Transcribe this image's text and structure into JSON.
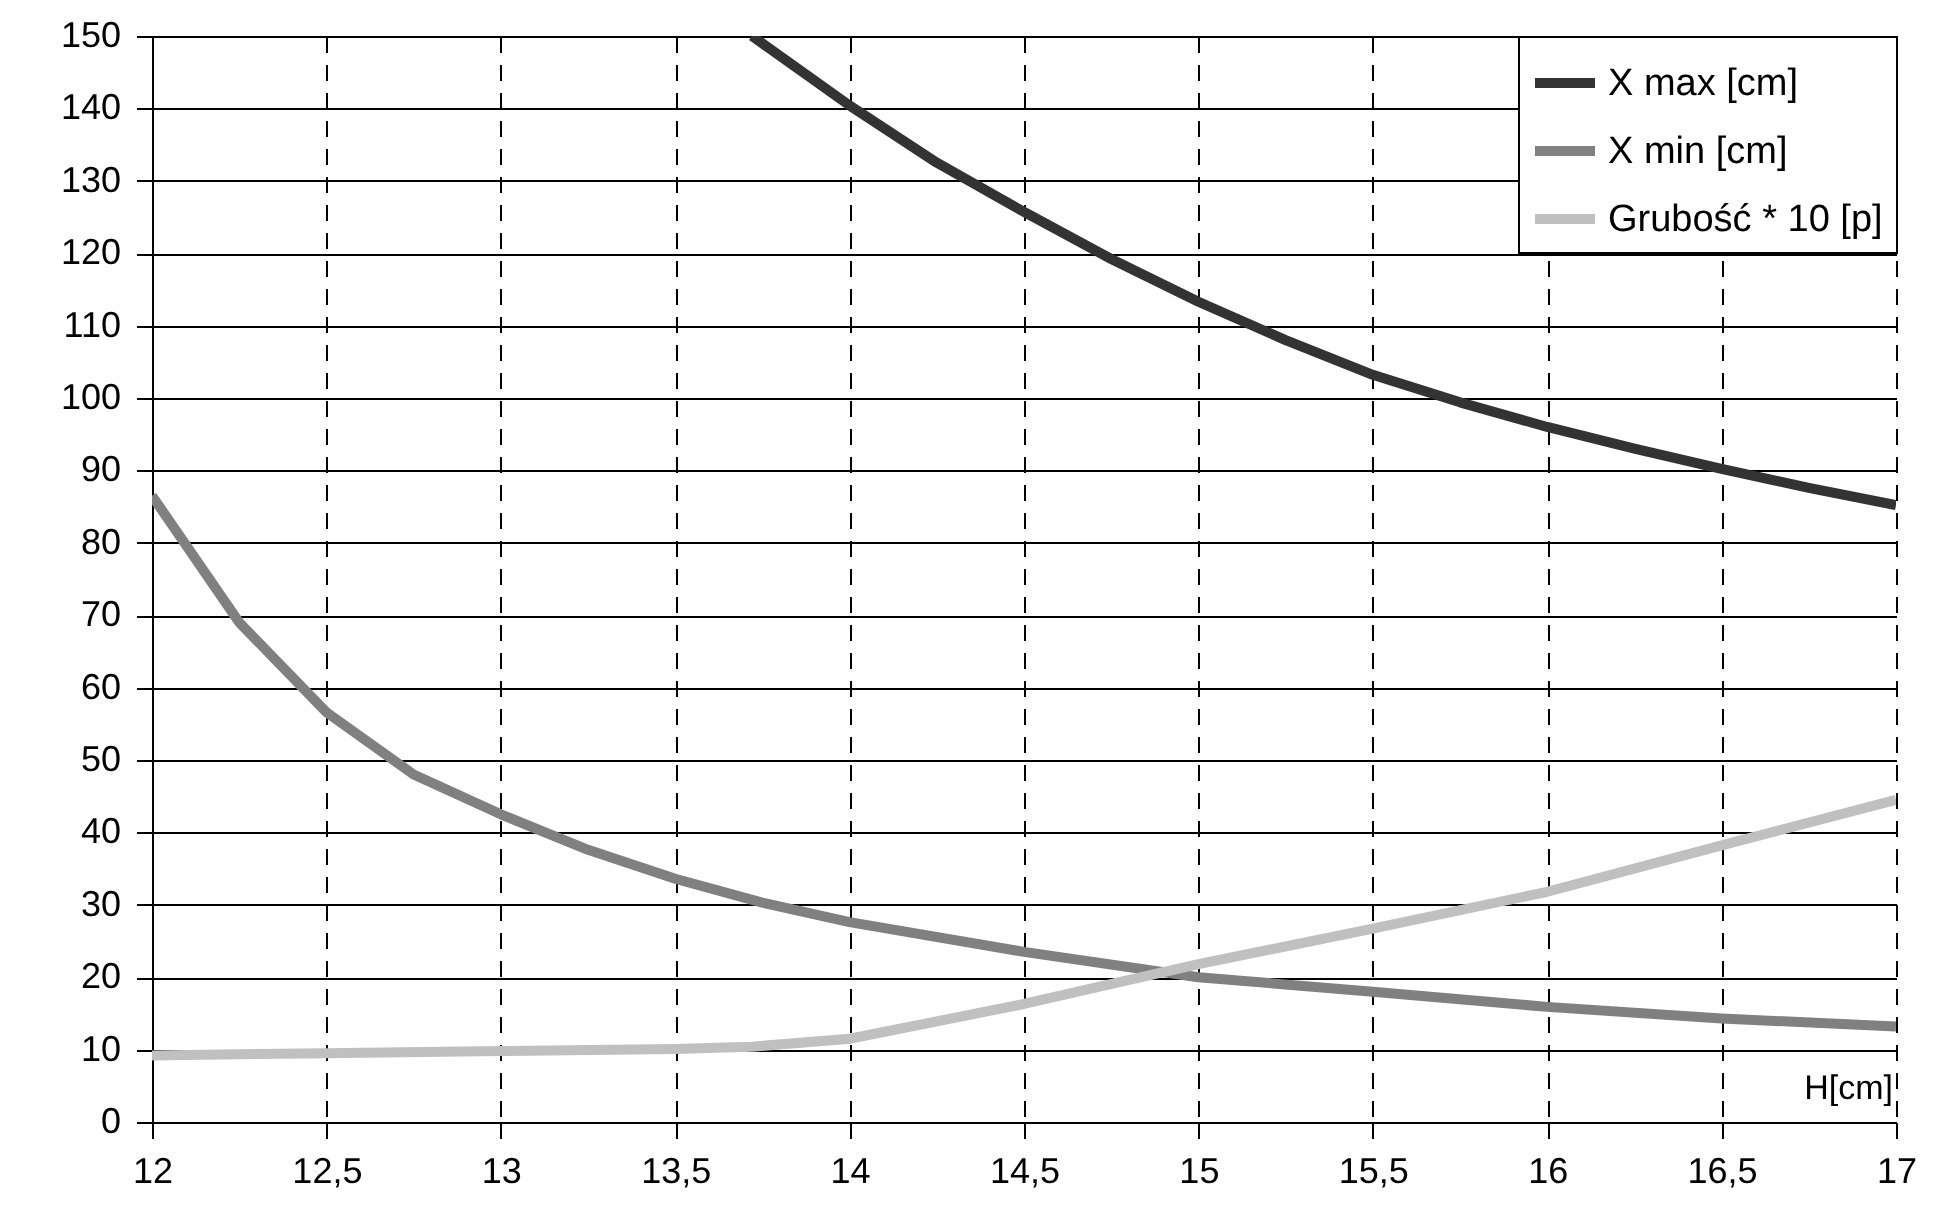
{
  "chart_data": {
    "type": "line",
    "xlabel": "H[cm]",
    "xlim": [
      12,
      17
    ],
    "xticks": [
      12,
      {
        "value": 12.5,
        "label": "12,5"
      },
      13,
      {
        "value": 13.5,
        "label": "13,5"
      },
      14,
      {
        "value": 14.5,
        "label": "14,5"
      },
      15,
      {
        "value": 15.5,
        "label": "15,5"
      },
      16,
      {
        "value": 16.5,
        "label": "16,5"
      },
      17
    ],
    "ylim": [
      0,
      150
    ],
    "yticks": [
      0,
      10,
      20,
      30,
      40,
      50,
      60,
      70,
      80,
      90,
      100,
      110,
      120,
      130,
      140,
      150
    ],
    "grid": true,
    "legend": "top right",
    "line_style": "solid",
    "marker": "none",
    "series": [
      {
        "name": "X max [cm]",
        "color": "#333333",
        "x": [
          13.72,
          14,
          14.25,
          14.5,
          14.75,
          15,
          15.25,
          15.5,
          15.75,
          16,
          16.25,
          16.5,
          16.75,
          17
        ],
        "values": [
          150,
          140.4,
          132.5,
          125.7,
          119.2,
          113.3,
          108,
          103.2,
          99.4,
          96,
          93,
          90.2,
          87.6,
          85.2
        ]
      },
      {
        "name": "X min [cm]",
        "color": "#808080",
        "x": [
          12,
          12.25,
          12.5,
          12.75,
          13,
          13.25,
          13.5,
          13.75,
          14,
          14.5,
          15,
          15.5,
          16,
          16.5,
          17
        ],
        "values": [
          86.5,
          69,
          56.6,
          48,
          42.5,
          37.6,
          33.6,
          30.3,
          27.6,
          23.5,
          20,
          18,
          15.9,
          14.3,
          13.2
        ]
      },
      {
        "name": "Grubość * 10 [p]",
        "color": "#c0c0c0",
        "x": [
          12,
          12.5,
          13,
          13.5,
          13.72,
          14,
          14.5,
          15,
          15.5,
          16,
          16.5,
          17
        ],
        "values": [
          9.2,
          9.5,
          9.8,
          10.1,
          10.4,
          11.5,
          16.3,
          21.8,
          26.7,
          31.8,
          38.2,
          44.5
        ]
      }
    ]
  }
}
